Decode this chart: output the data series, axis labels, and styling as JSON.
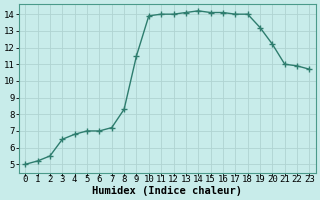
{
  "x": [
    0,
    1,
    2,
    3,
    4,
    5,
    6,
    7,
    8,
    9,
    10,
    11,
    12,
    13,
    14,
    15,
    16,
    17,
    18,
    19,
    20,
    21,
    22,
    23
  ],
  "y": [
    5.0,
    5.2,
    5.5,
    6.5,
    6.8,
    7.0,
    7.0,
    7.2,
    8.3,
    11.5,
    13.9,
    14.0,
    14.0,
    14.1,
    14.2,
    14.1,
    14.1,
    14.0,
    14.0,
    13.2,
    12.2,
    11.0,
    10.9,
    10.7
  ],
  "line_color": "#2e7d6e",
  "marker": "+",
  "marker_size": 4,
  "marker_lw": 1.0,
  "bg_color": "#c8ecea",
  "grid_color": "#b0d4d2",
  "xlabel": "Humidex (Indice chaleur)",
  "xlim": [
    -0.5,
    23.5
  ],
  "ylim": [
    4.5,
    14.6
  ],
  "yticks": [
    5,
    6,
    7,
    8,
    9,
    10,
    11,
    12,
    13,
    14
  ],
  "xticks": [
    0,
    1,
    2,
    3,
    4,
    5,
    6,
    7,
    8,
    9,
    10,
    11,
    12,
    13,
    14,
    15,
    16,
    17,
    18,
    19,
    20,
    21,
    22,
    23
  ],
  "tick_label_size": 6.5,
  "xlabel_fontsize": 7.5,
  "line_width": 1.0
}
